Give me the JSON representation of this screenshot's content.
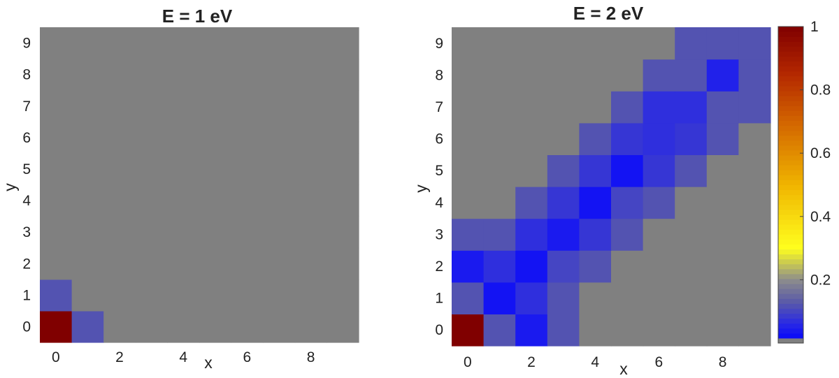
{
  "chart_data": [
    {
      "type": "heatmap",
      "title": "E = 1 eV",
      "xlabel": "x",
      "ylabel": "y",
      "x": [
        0,
        1,
        2,
        3,
        4,
        5,
        6,
        7,
        8,
        9
      ],
      "y": [
        0,
        1,
        2,
        3,
        4,
        5,
        6,
        7,
        8,
        9
      ],
      "xticks": [
        "0",
        "2",
        "4",
        "6",
        "8"
      ],
      "yticks": [
        "0",
        "1",
        "2",
        "3",
        "4",
        "5",
        "6",
        "7",
        "8",
        "9"
      ],
      "clim": [
        0,
        1
      ],
      "values": [
        [
          1.0,
          0.12,
          0,
          0,
          0,
          0,
          0,
          0,
          0,
          0
        ],
        [
          0.12,
          0,
          0,
          0,
          0,
          0,
          0,
          0,
          0,
          0
        ],
        [
          0,
          0,
          0,
          0,
          0,
          0,
          0,
          0,
          0,
          0
        ],
        [
          0,
          0,
          0,
          0,
          0,
          0,
          0,
          0,
          0,
          0
        ],
        [
          0,
          0,
          0,
          0,
          0,
          0,
          0,
          0,
          0,
          0
        ],
        [
          0,
          0,
          0,
          0,
          0,
          0,
          0,
          0,
          0,
          0
        ],
        [
          0,
          0,
          0,
          0,
          0,
          0,
          0,
          0,
          0,
          0
        ],
        [
          0,
          0,
          0,
          0,
          0,
          0,
          0,
          0,
          0,
          0
        ],
        [
          0,
          0,
          0,
          0,
          0,
          0,
          0,
          0,
          0,
          0
        ],
        [
          0,
          0,
          0,
          0,
          0,
          0,
          0,
          0,
          0,
          0
        ]
      ]
    },
    {
      "type": "heatmap",
      "title": "E = 2 eV",
      "xlabel": "x",
      "ylabel": "y",
      "x": [
        0,
        1,
        2,
        3,
        4,
        5,
        6,
        7,
        8,
        9
      ],
      "y": [
        0,
        1,
        2,
        3,
        4,
        5,
        6,
        7,
        8,
        9
      ],
      "xticks": [
        "0",
        "2",
        "4",
        "6",
        "8"
      ],
      "yticks": [
        "0",
        "1",
        "2",
        "3",
        "4",
        "5",
        "6",
        "7",
        "8",
        "9"
      ],
      "clim": [
        0,
        1
      ],
      "colorbar_ticks": [
        "0.2",
        "0.4",
        "0.6",
        "0.8",
        "1"
      ],
      "values": [
        [
          1.0,
          0.12,
          0.04,
          0.12,
          0,
          0,
          0,
          0,
          0,
          0
        ],
        [
          0.12,
          0.03,
          0.07,
          0.12,
          0,
          0,
          0,
          0,
          0,
          0
        ],
        [
          0.04,
          0.07,
          0.03,
          0.1,
          0.12,
          0,
          0,
          0,
          0,
          0
        ],
        [
          0.12,
          0.12,
          0.07,
          0.04,
          0.08,
          0.12,
          0,
          0,
          0,
          0
        ],
        [
          0,
          0,
          0.12,
          0.08,
          0.03,
          0.1,
          0.12,
          0,
          0,
          0
        ],
        [
          0,
          0,
          0,
          0.12,
          0.08,
          0.03,
          0.08,
          0.12,
          0,
          0
        ],
        [
          0,
          0,
          0,
          0,
          0.12,
          0.08,
          0.07,
          0.08,
          0.12,
          0
        ],
        [
          0,
          0,
          0,
          0,
          0,
          0.12,
          0.07,
          0.07,
          0.12,
          0.12
        ],
        [
          0,
          0,
          0,
          0,
          0,
          0,
          0.12,
          0.12,
          0.05,
          0.12
        ],
        [
          0,
          0,
          0,
          0,
          0,
          0,
          0,
          0.12,
          0.12,
          0.12
        ]
      ]
    }
  ],
  "colors": {
    "background_cell": "#808080",
    "blue_dark": "#5a5aa8",
    "blue_mid": "#2828e6",
    "blue_bright": "#0000ff",
    "max_red": "#800000"
  }
}
